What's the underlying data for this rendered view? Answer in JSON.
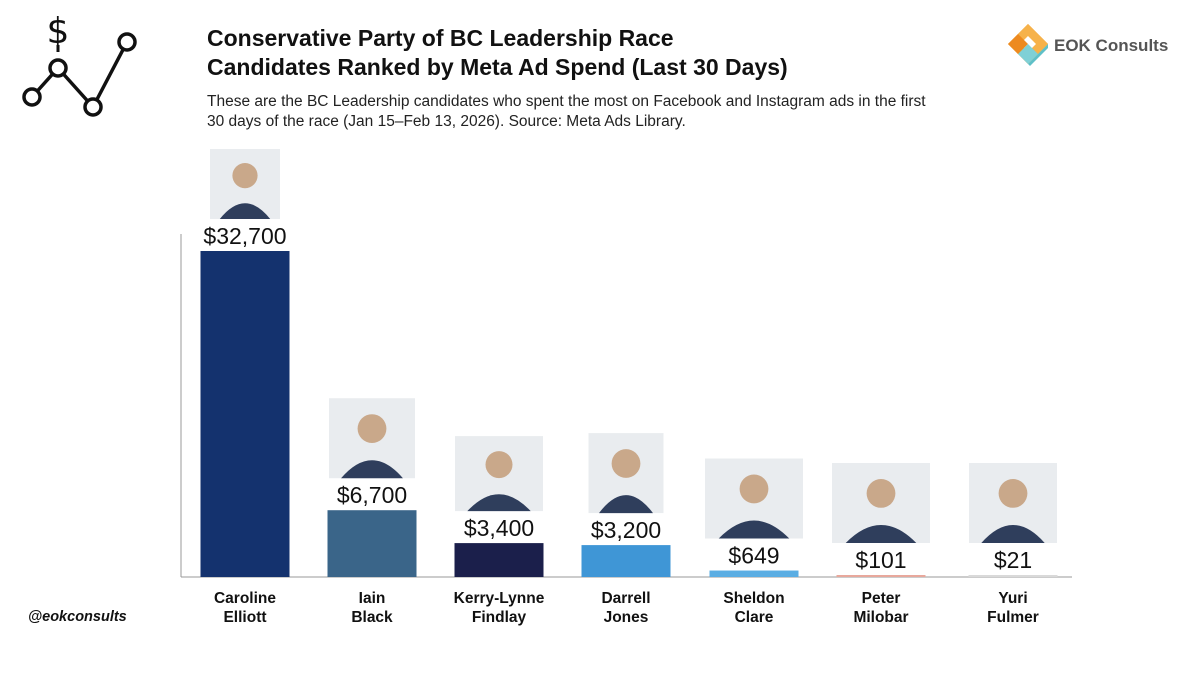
{
  "header": {
    "title_line1": "Conservative Party of BC Leadership Race",
    "title_line2": "Candidates Ranked by Meta Ad Spend (Last 30 Days)",
    "subtitle_line1": "These are the BC Leadership candidates who spent the most on Facebook and Instagram ads in the first",
    "subtitle_line2": "30 days of the race (Jan 15–Feb 13, 2026). Source: Meta Ads Library."
  },
  "brand": {
    "name": "EOK Consults",
    "logo_icon": "$"
  },
  "footer": {
    "handle": "@eokconsults"
  },
  "colors": {
    "caroline": "#14326e",
    "iain": "#3a6589",
    "kerry": "#1b1f4b",
    "darrell": "#3f96d6",
    "sheldon": "#5aade3",
    "peter": "#e8a89c",
    "yuri": "#d9d9d9",
    "axis": "#999999",
    "brand_orange": "#f4a02c",
    "brand_teal": "#7fd0d6"
  },
  "chart_data": {
    "type": "bar",
    "title": "Candidates Ranked by Meta Ad Spend (Last 30 Days)",
    "xlabel": "",
    "ylabel": "",
    "ylim": [
      0,
      32700
    ],
    "grid": false,
    "legend": "none",
    "categories": [
      {
        "line1": "Caroline",
        "line2": "Elliott"
      },
      {
        "line1": "Iain",
        "line2": "Black"
      },
      {
        "line1": "Kerry-Lynne",
        "line2": "Findlay"
      },
      {
        "line1": "Darrell",
        "line2": "Jones"
      },
      {
        "line1": "Sheldon",
        "line2": "Clare"
      },
      {
        "line1": "Peter",
        "line2": "Milobar"
      },
      {
        "line1": "Yuri",
        "line2": "Fulmer"
      }
    ],
    "values": [
      32700,
      6700,
      3400,
      3200,
      649,
      101,
      21
    ],
    "value_labels": [
      "$32,700",
      "$6,700",
      "$3,400",
      "$3,200",
      "$649",
      "$101",
      "$21"
    ],
    "bar_color_keys": [
      "caroline",
      "iain",
      "kerry",
      "darrell",
      "sheldon",
      "peter",
      "yuri"
    ]
  }
}
